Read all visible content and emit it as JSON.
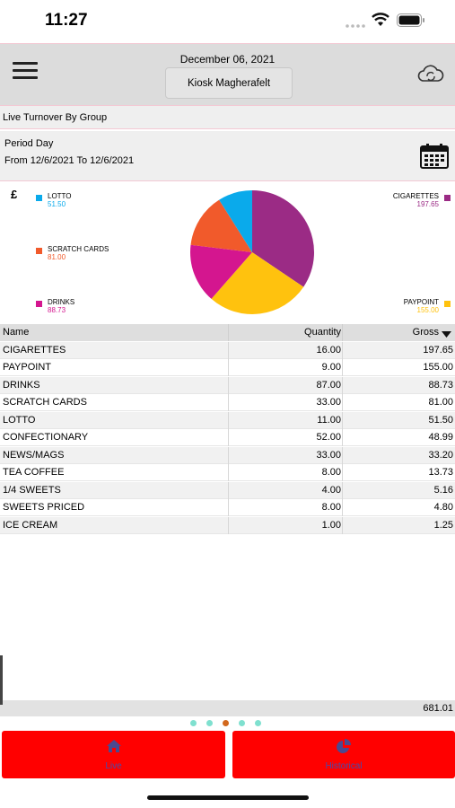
{
  "status": {
    "time": "11:27"
  },
  "header": {
    "date": "December 06, 2021",
    "store": "Kiosk Magherafelt"
  },
  "section_title": "Live Turnover By Group",
  "period": {
    "label": "Period Day",
    "range": "From 12/6/2021 To 12/6/2021"
  },
  "chart": {
    "currency": "£"
  },
  "chart_data": {
    "type": "pie",
    "slices": [
      {
        "label": "CIGARETTES",
        "value": 197.65,
        "value_text": "197.65",
        "color": "#9b2b85"
      },
      {
        "label": "PAYPOINT",
        "value": 155.0,
        "value_text": "155.00",
        "color": "#ffc20e"
      },
      {
        "label": "DRINKS",
        "value": 88.73,
        "value_text": "88.73",
        "color": "#d4168f"
      },
      {
        "label": "SCRATCH CARDS",
        "value": 81.0,
        "value_text": "81.00",
        "color": "#f15a2b"
      },
      {
        "label": "LOTTO",
        "value": 51.5,
        "value_text": "51.50",
        "color": "#0aaaeb"
      }
    ]
  },
  "table": {
    "headers": {
      "name": "Name",
      "quantity": "Quantity",
      "gross": "Gross"
    },
    "rows": [
      {
        "name": "CIGARETTES",
        "qty": "16.00",
        "gross": "197.65"
      },
      {
        "name": "PAYPOINT",
        "qty": "9.00",
        "gross": "155.00"
      },
      {
        "name": "DRINKS",
        "qty": "87.00",
        "gross": "88.73"
      },
      {
        "name": "SCRATCH CARDS",
        "qty": "33.00",
        "gross": "81.00"
      },
      {
        "name": "LOTTO",
        "qty": "11.00",
        "gross": "51.50"
      },
      {
        "name": "CONFECTIONARY",
        "qty": "52.00",
        "gross": "48.99"
      },
      {
        "name": "NEWS/MAGS",
        "qty": "33.00",
        "gross": "33.20"
      },
      {
        "name": "TEA COFFEE",
        "qty": "8.00",
        "gross": "13.73"
      },
      {
        "name": "1/4 SWEETS",
        "qty": "4.00",
        "gross": "5.16"
      },
      {
        "name": "SWEETS PRICED",
        "qty": "8.00",
        "gross": "4.80"
      },
      {
        "name": "ICE CREAM",
        "qty": "1.00",
        "gross": "1.25"
      }
    ],
    "total": "681.01"
  },
  "pager": {
    "count": 5,
    "active": 2,
    "color": "#7fe0cf",
    "active_color": "#d2691e"
  },
  "tabs": {
    "live": "Live",
    "historical": "Historical"
  },
  "colors": {
    "tab_bg": "#ff0000",
    "tab_text": "#4a4aa8"
  }
}
